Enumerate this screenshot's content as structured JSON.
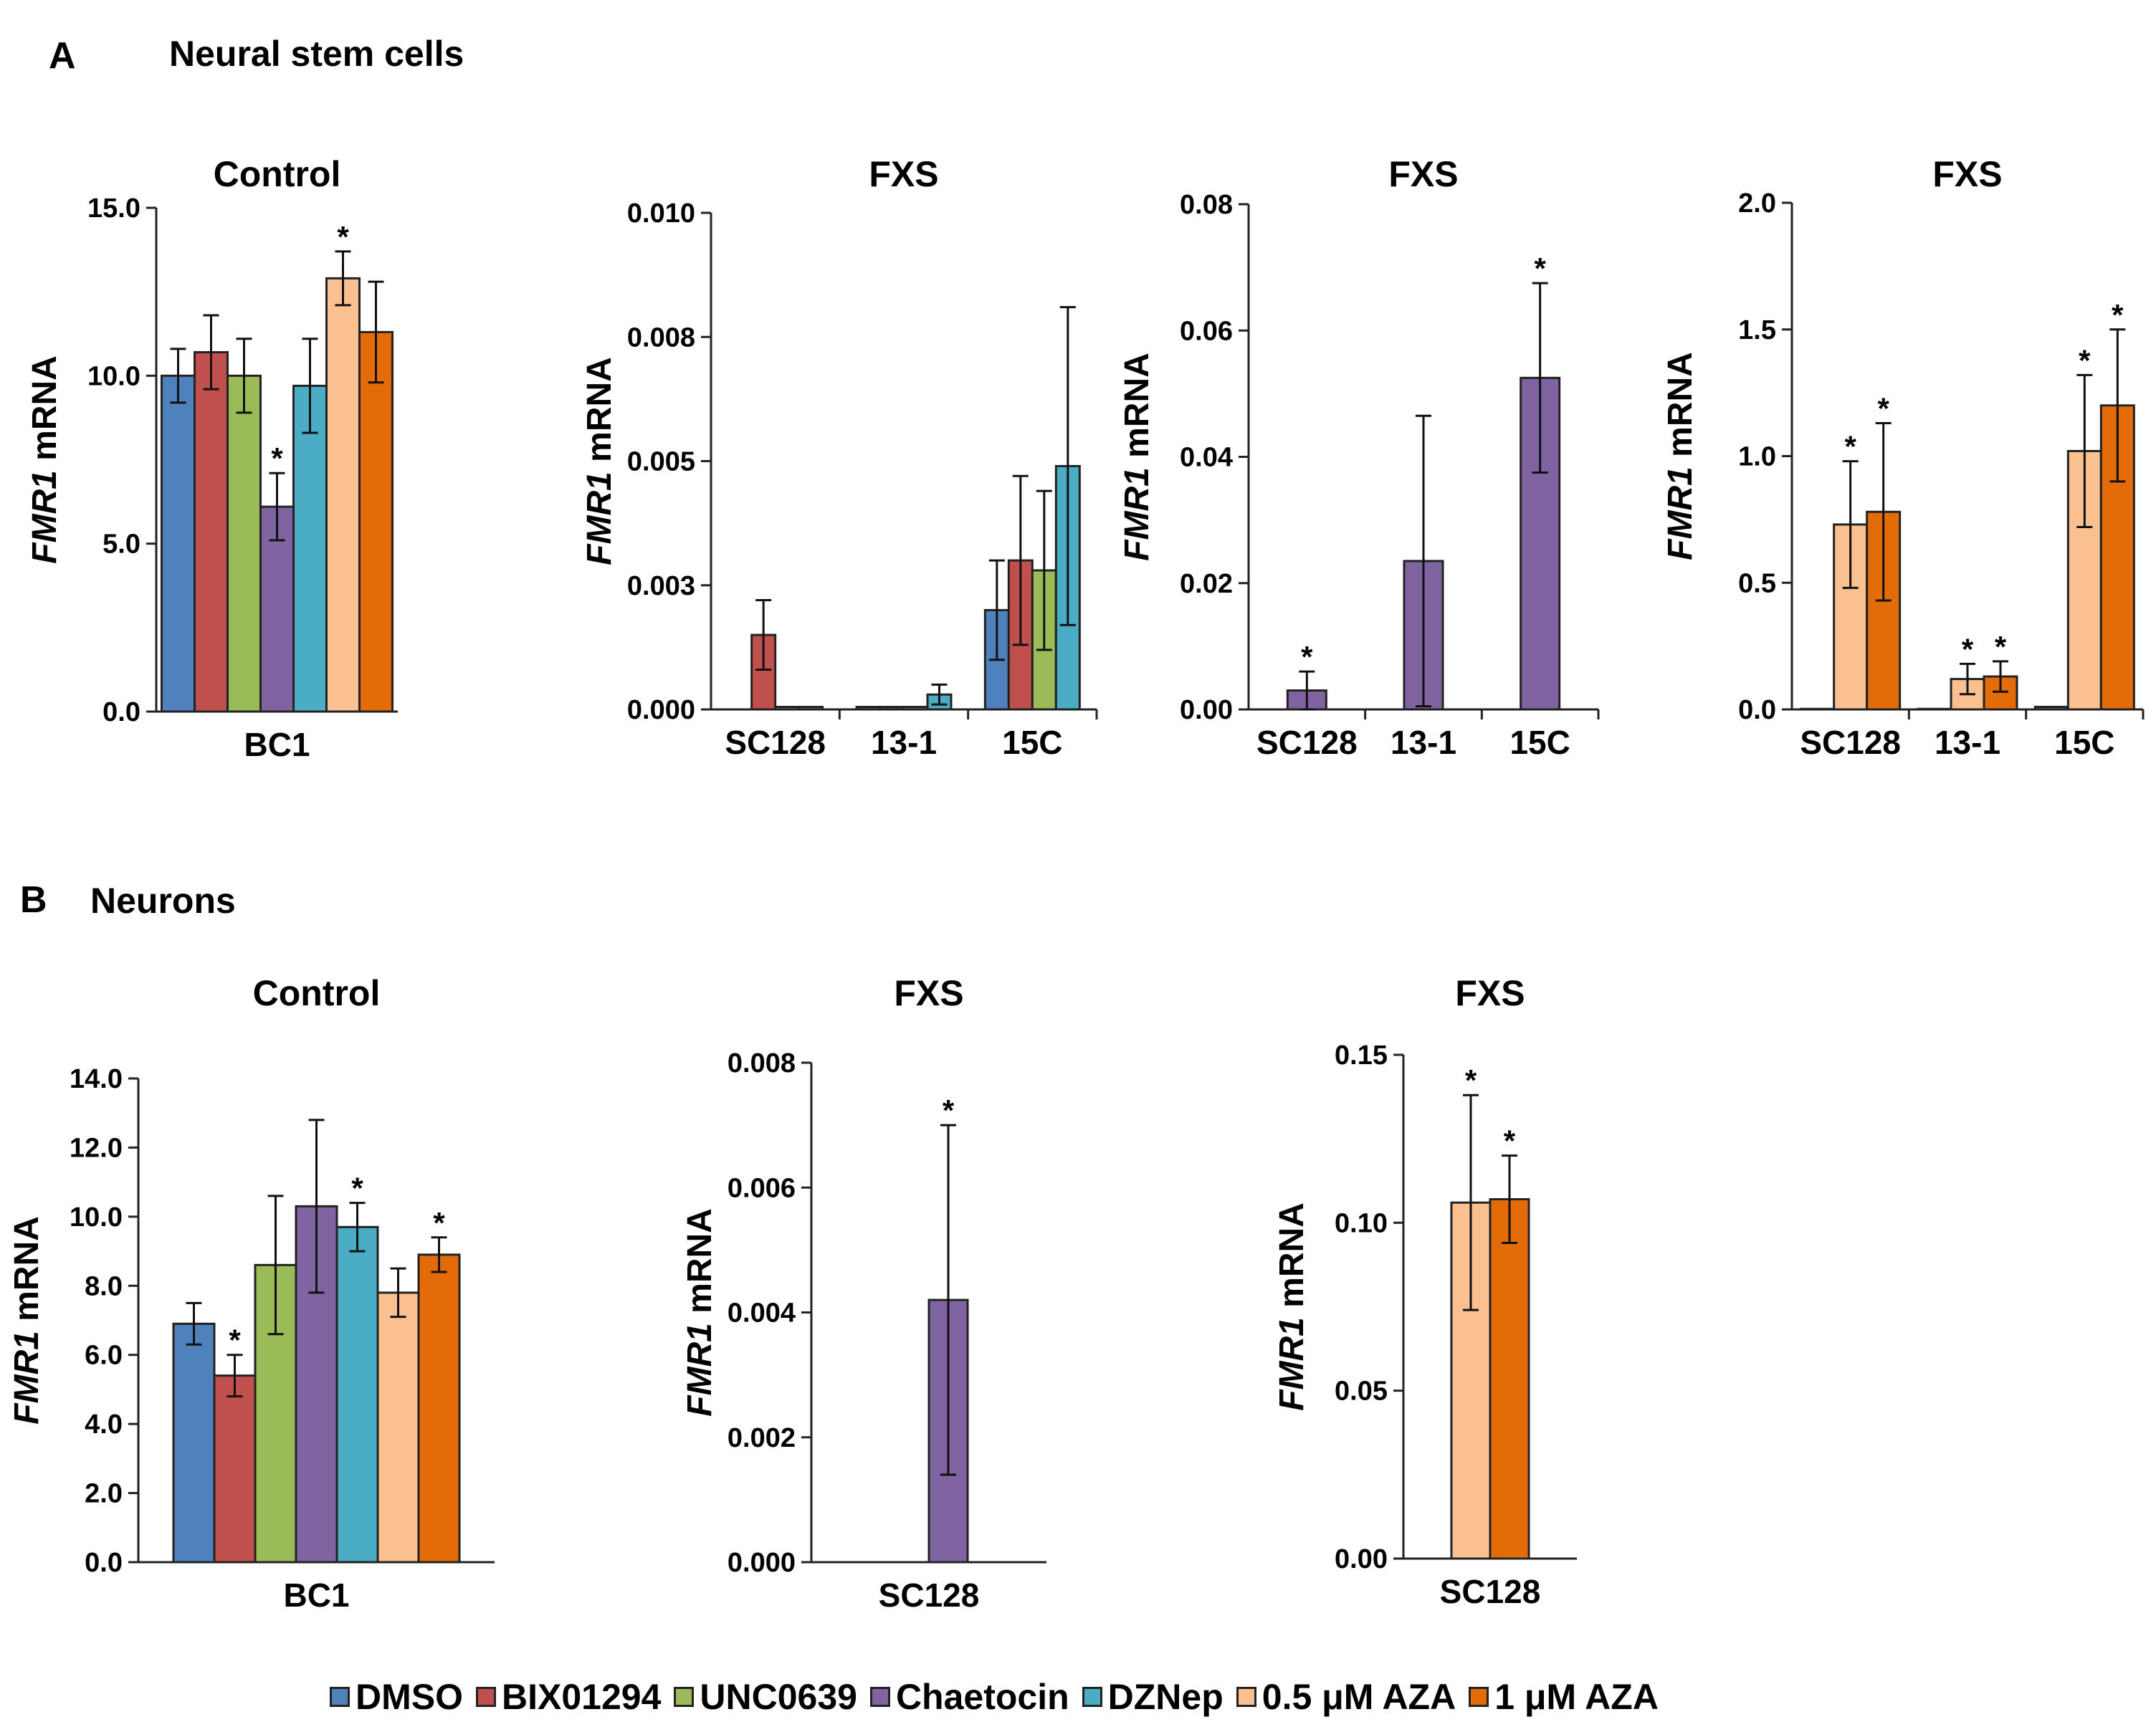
{
  "panels": {
    "A": {
      "letter": "A",
      "title": "Neural stem cells"
    },
    "B": {
      "letter": "B",
      "title": "Neurons"
    }
  },
  "legend": {
    "entries": [
      {
        "label": "DMSO",
        "color": "#4F81BD"
      },
      {
        "label": "BIX01294",
        "color": "#C0504D"
      },
      {
        "label": "UNC0639",
        "color": "#9BBB59"
      },
      {
        "label": "Chaetocin",
        "color": "#8064A2"
      },
      {
        "label": "DZNep",
        "color": "#4BACC6"
      },
      {
        "label": "0.5 μM AZA",
        "color": "#FAC090"
      },
      {
        "label": "1 μM AZA",
        "color": "#E36C09"
      }
    ]
  },
  "chart_data": [
    {
      "id": "A-control",
      "type": "bar",
      "title": "Control",
      "ylabel_italic": "FMR1",
      "ylabel_rest": " mRNA",
      "ylim": [
        0,
        15
      ],
      "yticks": [
        "0.0",
        "5.0",
        "10.0",
        "15.0"
      ],
      "ytick_values": [
        0,
        5,
        10,
        15
      ],
      "groups": [
        {
          "label": "BC1",
          "bars": [
            {
              "series": "DMSO",
              "value": 10.0,
              "err": 0.8,
              "star": false
            },
            {
              "series": "BIX01294",
              "value": 10.7,
              "err": 1.1,
              "star": false
            },
            {
              "series": "UNC0639",
              "value": 10.0,
              "err": 1.1,
              "star": false
            },
            {
              "series": "Chaetocin",
              "value": 6.1,
              "err": 1.0,
              "star": true
            },
            {
              "series": "DZNep",
              "value": 9.7,
              "err": 1.4,
              "star": false
            },
            {
              "series": "0.5 μM AZA",
              "value": 12.9,
              "err": 0.8,
              "star": true
            },
            {
              "series": "1 μM AZA",
              "value": 11.3,
              "err": 1.5,
              "star": false
            }
          ]
        }
      ]
    },
    {
      "id": "A-fxs-1",
      "type": "bar",
      "title": "FXS",
      "ylabel_italic": "FMR1",
      "ylabel_rest": " mRNA",
      "ylim": [
        0,
        0.01
      ],
      "yticks": [
        "0.000",
        "0.003",
        "0.005",
        "0.008",
        "0.010"
      ],
      "ytick_values": [
        0,
        0.0025,
        0.005,
        0.0075,
        0.01
      ],
      "groups": [
        {
          "label": "SC128",
          "bars": [
            {
              "series": "DMSO",
              "value": 0.0,
              "err": 0,
              "star": false
            },
            {
              "series": "BIX01294",
              "value": 0.0015,
              "err": 0.0007,
              "star": false
            },
            {
              "series": "UNC0639",
              "value": 5e-05,
              "err": 0,
              "star": false
            },
            {
              "series": "DZNep",
              "value": 5e-05,
              "err": 0,
              "star": false
            }
          ]
        },
        {
          "label": "13-1",
          "bars": [
            {
              "series": "DMSO",
              "value": 5e-05,
              "err": 0,
              "star": false
            },
            {
              "series": "BIX01294",
              "value": 5e-05,
              "err": 0,
              "star": false
            },
            {
              "series": "UNC0639",
              "value": 5e-05,
              "err": 0,
              "star": false
            },
            {
              "series": "DZNep",
              "value": 0.0003,
              "err": 0.0002,
              "star": false
            }
          ]
        },
        {
          "label": "15C",
          "bars": [
            {
              "series": "DMSO",
              "value": 0.002,
              "err": 0.001,
              "star": false
            },
            {
              "series": "BIX01294",
              "value": 0.003,
              "err": 0.0017,
              "star": false
            },
            {
              "series": "UNC0639",
              "value": 0.0028,
              "err": 0.0016,
              "star": false
            },
            {
              "series": "DZNep",
              "value": 0.0049,
              "err": 0.0032,
              "star": false
            }
          ]
        }
      ]
    },
    {
      "id": "A-fxs-2",
      "type": "bar",
      "title": "FXS",
      "ylabel_italic": "FMR1",
      "ylabel_rest": " mRNA",
      "ylim": [
        0,
        0.08
      ],
      "yticks": [
        "0.00",
        "0.02",
        "0.04",
        "0.06",
        "0.08"
      ],
      "ytick_values": [
        0,
        0.02,
        0.04,
        0.06,
        0.08
      ],
      "groups": [
        {
          "label": "SC128",
          "bars": [
            {
              "series": "Chaetocin",
              "value": 0.003,
              "err": 0.003,
              "star": true
            }
          ]
        },
        {
          "label": "13-1",
          "bars": [
            {
              "series": "Chaetocin",
              "value": 0.0235,
              "err": 0.023,
              "star": false
            }
          ]
        },
        {
          "label": "15C",
          "bars": [
            {
              "series": "Chaetocin",
              "value": 0.0525,
              "err": 0.015,
              "star": true
            }
          ]
        }
      ]
    },
    {
      "id": "A-fxs-3",
      "type": "bar",
      "title": "FXS",
      "ylabel_italic": "FMR1",
      "ylabel_rest": " mRNA",
      "ylim": [
        0,
        2.0
      ],
      "yticks": [
        "0.0",
        "0.5",
        "1.0",
        "1.5",
        "2.0"
      ],
      "ytick_values": [
        0,
        0.5,
        1.0,
        1.5,
        2.0
      ],
      "groups": [
        {
          "label": "SC128",
          "bars": [
            {
              "series": "DMSO",
              "value": 0.002,
              "err": 0,
              "star": false
            },
            {
              "series": "0.5 μM AZA",
              "value": 0.73,
              "err": 0.25,
              "star": true
            },
            {
              "series": "1 μM AZA",
              "value": 0.78,
              "err": 0.35,
              "star": true
            }
          ]
        },
        {
          "label": "13-1",
          "bars": [
            {
              "series": "DMSO",
              "value": 0.002,
              "err": 0,
              "star": false
            },
            {
              "series": "0.5 μM AZA",
              "value": 0.12,
              "err": 0.06,
              "star": true
            },
            {
              "series": "1 μM AZA",
              "value": 0.13,
              "err": 0.06,
              "star": true
            }
          ]
        },
        {
          "label": "15C",
          "bars": [
            {
              "series": "DMSO",
              "value": 0.01,
              "err": 0,
              "star": false
            },
            {
              "series": "0.5 μM AZA",
              "value": 1.02,
              "err": 0.3,
              "star": true
            },
            {
              "series": "1 μM AZA",
              "value": 1.2,
              "err": 0.3,
              "star": true
            }
          ]
        }
      ]
    },
    {
      "id": "B-control",
      "type": "bar",
      "title": "Control",
      "ylabel_italic": "FMR1",
      "ylabel_rest": " mRNA",
      "ylim": [
        0,
        14
      ],
      "yticks": [
        "0.0",
        "2.0",
        "4.0",
        "6.0",
        "8.0",
        "10.0",
        "12.0",
        "14.0"
      ],
      "ytick_values": [
        0,
        2,
        4,
        6,
        8,
        10,
        12,
        14
      ],
      "groups": [
        {
          "label": "BC1",
          "bars": [
            {
              "series": "DMSO",
              "value": 6.9,
              "err": 0.6,
              "star": false
            },
            {
              "series": "BIX01294",
              "value": 5.4,
              "err": 0.6,
              "star": true
            },
            {
              "series": "UNC0639",
              "value": 8.6,
              "err": 2.0,
              "star": false
            },
            {
              "series": "Chaetocin",
              "value": 10.3,
              "err": 2.5,
              "star": false
            },
            {
              "series": "DZNep",
              "value": 9.7,
              "err": 0.7,
              "star": true
            },
            {
              "series": "0.5 μM AZA",
              "value": 7.8,
              "err": 0.7,
              "star": false
            },
            {
              "series": "1 μM AZA",
              "value": 8.9,
              "err": 0.5,
              "star": true
            }
          ]
        }
      ]
    },
    {
      "id": "B-fxs-1",
      "type": "bar",
      "title": "FXS",
      "ylabel_italic": "FMR1",
      "ylabel_rest": " mRNA",
      "ylim": [
        0,
        0.008
      ],
      "yticks": [
        "0.000",
        "0.002",
        "0.004",
        "0.006",
        "0.008"
      ],
      "ytick_values": [
        0,
        0.002,
        0.004,
        0.006,
        0.008
      ],
      "groups": [
        {
          "label": "SC128",
          "bars": [
            {
              "series": "DMSO",
              "value": 0.0,
              "err": 0,
              "star": false
            },
            {
              "series": "Chaetocin",
              "value": 0.0042,
              "err": 0.0028,
              "star": true
            }
          ]
        }
      ]
    },
    {
      "id": "B-fxs-2",
      "type": "bar",
      "title": "FXS",
      "ylabel_italic": "FMR1",
      "ylabel_rest": " mRNA",
      "ylim": [
        0,
        0.15
      ],
      "yticks": [
        "0.00",
        "0.05",
        "0.10",
        "0.15"
      ],
      "ytick_values": [
        0,
        0.05,
        0.1,
        0.15
      ],
      "groups": [
        {
          "label": "SC128",
          "bars": [
            {
              "series": "0.5 μM AZA",
              "value": 0.106,
              "err": 0.032,
              "star": true
            },
            {
              "series": "1 μM AZA",
              "value": 0.107,
              "err": 0.013,
              "star": true
            }
          ]
        }
      ]
    }
  ]
}
